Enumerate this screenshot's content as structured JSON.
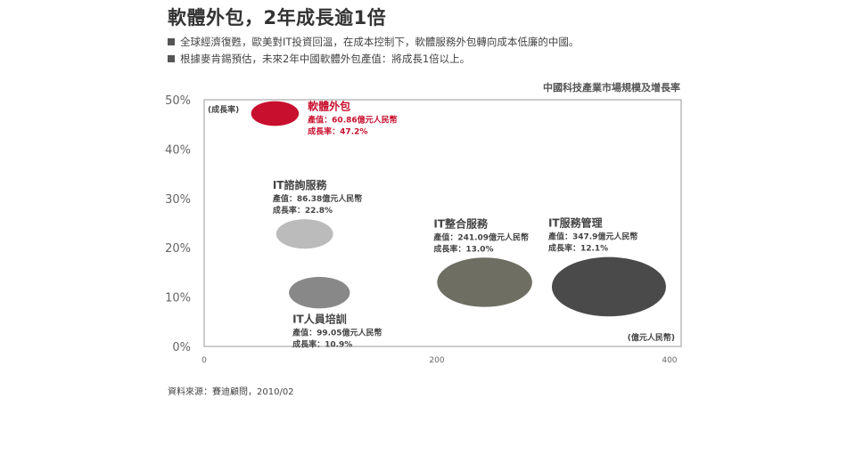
{
  "header": {
    "title": "軟體外包，2年成長逾1倍",
    "bullets": [
      "全球經濟復甦，歐美對IT投資回溫，在成本控制下，軟體服務外包轉向成本低廉的中國。",
      "根據麥肯錫預估，未來2年中國軟體外包產值：將成長1倍以上。"
    ]
  },
  "chart_title": "中國科技產業市場規模及增長率",
  "source": "資料來源：賽迪顧問，2010/02",
  "chart_data": {
    "type": "scatter",
    "ylabel": "(成長率)",
    "xlabel": "(億元人民幣)",
    "x_ticks": [
      "0",
      "200",
      "400"
    ],
    "y_ticks": [
      "0%",
      "10%",
      "20%",
      "30%",
      "40%",
      "50%"
    ],
    "xlim": [
      0,
      410
    ],
    "ylim": [
      0,
      50
    ],
    "grid": false,
    "points": [
      {
        "name": "軟體外包",
        "value_text": "產值：60.86億元人民幣",
        "growth_text": "成長率：47.2%",
        "x": 60.86,
        "y": 47.2,
        "color": "#c8102e",
        "label_color": "#c8102e",
        "label_pos": "right"
      },
      {
        "name": "IT諮詢服務",
        "value_text": "產值：86.38億元人民幣",
        "growth_text": "成長率：22.8%",
        "x": 86.38,
        "y": 22.8,
        "color": "#bbbbbb",
        "label_color": "#444444",
        "label_pos": "above"
      },
      {
        "name": "IT人員培訓",
        "value_text": "產值：99.05億元人民幣",
        "growth_text": "成長率：10.9%",
        "x": 99.05,
        "y": 10.9,
        "color": "#888888",
        "label_color": "#444444",
        "label_pos": "below"
      },
      {
        "name": "IT整合服務",
        "value_text": "產值：241.09億元人民幣",
        "growth_text": "成長率：13.0%",
        "x": 241.09,
        "y": 13.0,
        "color": "#6e6e62",
        "label_color": "#444444",
        "label_pos": "above"
      },
      {
        "name": "IT服務管理",
        "value_text": "產值：347.9億元人民幣",
        "growth_text": "成長率：12.1%",
        "x": 347.9,
        "y": 12.1,
        "color": "#4a4a4a",
        "label_color": "#444444",
        "label_pos": "above"
      }
    ]
  }
}
